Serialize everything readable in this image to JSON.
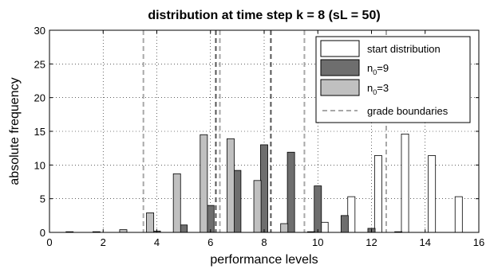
{
  "chart_data": {
    "type": "bar",
    "title": "distribution at time step k = 8 (sL = 50)",
    "xlabel": "performance levels",
    "ylabel": "absolute frequency",
    "xlim": [
      0,
      16
    ],
    "ylim": [
      0,
      30
    ],
    "x_ticks": [
      "0",
      "2",
      "4",
      "6",
      "8",
      "10",
      "12",
      "14",
      "16"
    ],
    "y_ticks": [
      "0",
      "5",
      "10",
      "15",
      "20",
      "25",
      "30"
    ],
    "grid": true,
    "legend_position": "top-right",
    "levels": [
      1,
      2,
      3,
      4,
      5,
      6,
      7,
      8,
      9,
      10,
      11,
      12,
      13,
      14,
      15
    ],
    "series": [
      {
        "name": "start distribution",
        "color": "#ffffff",
        "edge": "#000000",
        "values": [
          0,
          0,
          0,
          0,
          0,
          0,
          0,
          0,
          0,
          1.5,
          5.3,
          11.4,
          14.6,
          11.4,
          5.3
        ]
      },
      {
        "name_main": "n",
        "name_sub": "0",
        "name_rest": "=9",
        "color": "#6e6e6e",
        "edge": "#000000",
        "values": [
          0,
          0,
          0,
          0.2,
          1.1,
          4.0,
          9.2,
          13.0,
          11.9,
          6.9,
          2.5,
          0.6,
          0.1,
          0,
          0
        ]
      },
      {
        "name_main": "n",
        "name_sub": "0",
        "name_rest": "=3",
        "color": "#c0c0c0",
        "edge": "#000000",
        "values": [
          0.1,
          0.1,
          0.4,
          2.9,
          8.7,
          14.5,
          13.9,
          7.7,
          1.3,
          0.1,
          0,
          0,
          0,
          0,
          0
        ]
      }
    ],
    "grade_boundaries": {
      "name": "grade boundaries",
      "color": "#a8a8a8",
      "positions": [
        3.5,
        6.35,
        9.5,
        12.55
      ]
    },
    "means": {
      "color": "#555555",
      "positions": [
        6.2,
        8.25
      ]
    }
  }
}
